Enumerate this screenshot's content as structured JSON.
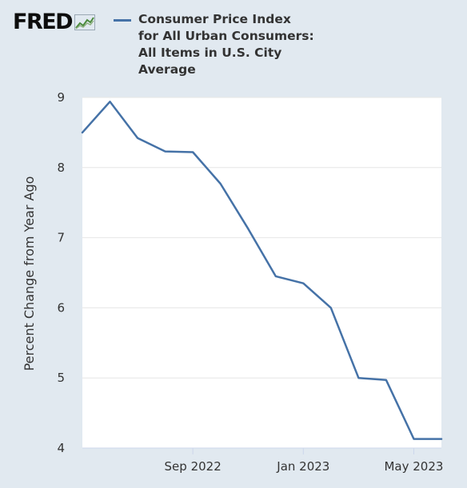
{
  "brand": {
    "logo_text": "FRED",
    "logo_icon": "line-chart-icon"
  },
  "legend": {
    "label": "Consumer Price Index for All Urban Consumers: All Items in U.S. City Average"
  },
  "colors": {
    "series": "#4572a7",
    "background": "#e1e9f0",
    "plot_background": "#ffffff",
    "grid": "#e6e6e6",
    "text": "#333333"
  },
  "chart_data": {
    "type": "line",
    "ylabel": "Percent Change from Year Ago",
    "xlabel": "",
    "ylim": [
      4,
      9
    ],
    "yticks": [
      4,
      5,
      6,
      7,
      8,
      9
    ],
    "xlim": [
      "2022-05",
      "2023-06"
    ],
    "xticks": [
      {
        "x": "2022-09",
        "label": "Sep 2022"
      },
      {
        "x": "2023-01",
        "label": "Jan 2023"
      },
      {
        "x": "2023-05",
        "label": "May 2023"
      }
    ],
    "grid": true,
    "series": [
      {
        "name": "Consumer Price Index for All Urban Consumers: All Items in U.S. City Average",
        "x": [
          "2022-05",
          "2022-06",
          "2022-07",
          "2022-08",
          "2022-09",
          "2022-10",
          "2022-11",
          "2022-12",
          "2023-01",
          "2023-02",
          "2023-03",
          "2023-04",
          "2023-05",
          "2023-06"
        ],
        "values": [
          8.5,
          8.94,
          8.42,
          8.23,
          8.22,
          7.77,
          7.13,
          6.45,
          6.35,
          6.0,
          5.0,
          4.97,
          4.13,
          4.13
        ]
      }
    ]
  }
}
